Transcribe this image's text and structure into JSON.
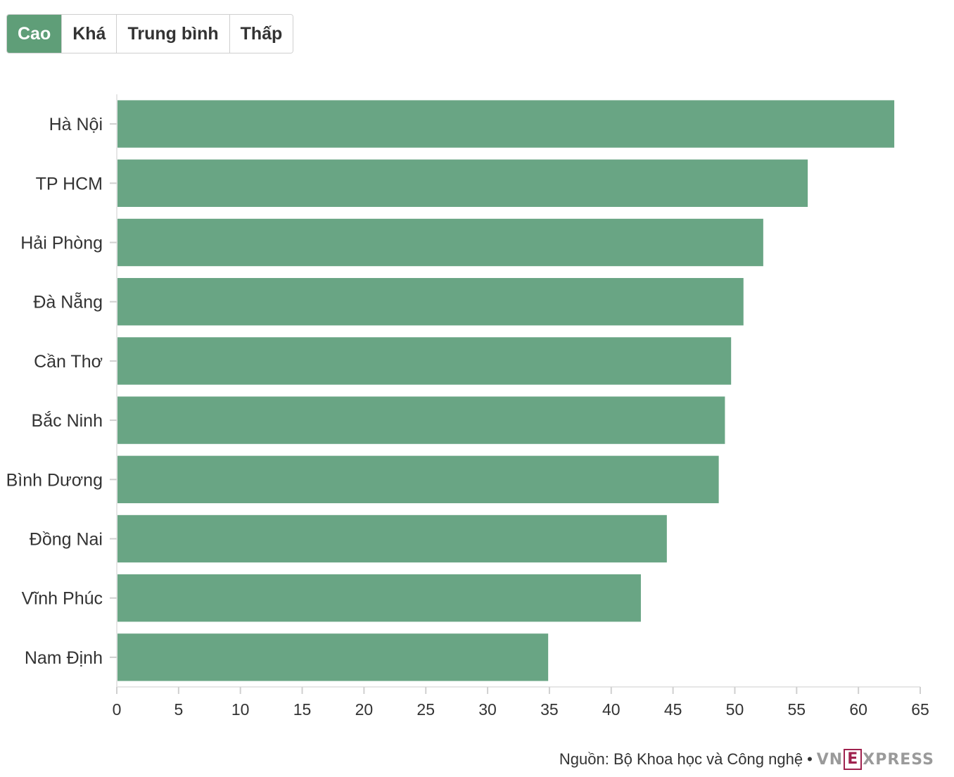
{
  "tabs": [
    {
      "label": "Cao",
      "active": true
    },
    {
      "label": "Khá",
      "active": false
    },
    {
      "label": "Trung bình",
      "active": false
    },
    {
      "label": "Thấp",
      "active": false
    }
  ],
  "chart_data": {
    "type": "bar",
    "orientation": "horizontal",
    "categories": [
      "Hà Nội",
      "TP HCM",
      "Hải Phòng",
      "Đà Nẵng",
      "Cần Thơ",
      "Bắc Ninh",
      "Bình Dương",
      "Đồng Nai",
      "Vĩnh Phúc",
      "Nam Định"
    ],
    "values": [
      62.9,
      55.9,
      52.3,
      50.7,
      49.7,
      49.2,
      48.7,
      44.5,
      42.4,
      34.9
    ],
    "xlim": [
      0,
      65
    ],
    "xticks": [
      0,
      5,
      10,
      15,
      20,
      25,
      30,
      35,
      40,
      45,
      50,
      55,
      60,
      65
    ],
    "title": "",
    "xlabel": "",
    "ylabel": "",
    "grid": false,
    "bar_color": "#69a584"
  },
  "footer": {
    "source": "Nguồn: Bộ Khoa học và Công nghệ",
    "separator": "•",
    "logo_left": "VN",
    "logo_box": "E",
    "logo_right": "XPRESS"
  },
  "colors": {
    "accent": "#5f9e78",
    "logo_red": "#9f224e"
  }
}
